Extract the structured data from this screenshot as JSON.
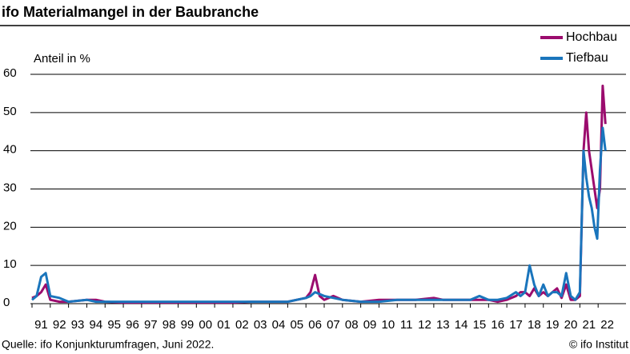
{
  "chart_data": {
    "type": "line",
    "title": "ifo Materialmangel in der Baubranche",
    "y_label": "Anteil in %",
    "source": "Quelle: ifo Konjunkturumfragen, Juni 2022.",
    "copyright": "© ifo Institut",
    "x": [
      1991.0,
      1991.25,
      1991.5,
      1991.75,
      1992.0,
      1992.5,
      1993,
      1994,
      1994.5,
      1995,
      1996,
      1997,
      1998,
      1999,
      2000,
      2001,
      2002,
      2003,
      2004,
      2005,
      2005.5,
      2006,
      2006.25,
      2006.5,
      2006.75,
      2007,
      2007.5,
      2008,
      2009,
      2010,
      2011,
      2012,
      2013,
      2013.5,
      2014,
      2015,
      2015.5,
      2016,
      2016.5,
      2017,
      2017.5,
      2017.75,
      2018,
      2018.25,
      2018.5,
      2018.75,
      2019,
      2019.25,
      2019.5,
      2019.75,
      2020,
      2020.25,
      2020.5,
      2020.75,
      2021,
      2021.2,
      2021.35,
      2021.5,
      2021.65,
      2021.8,
      2021.95,
      2022.1,
      2022.25,
      2022.4
    ],
    "series": [
      {
        "name": "Hochbau",
        "color": "#9b0c6e",
        "values": [
          1.5,
          2,
          3,
          5,
          1,
          0.5,
          0.5,
          1,
          1,
          0.5,
          0.3,
          0.3,
          0.3,
          0.3,
          0.3,
          0.3,
          0.3,
          0.5,
          0.5,
          0.5,
          1,
          1.5,
          3,
          7.5,
          2,
          1,
          2,
          1,
          0.5,
          1,
          1,
          1,
          1.5,
          1,
          1,
          1,
          1,
          1,
          0.5,
          1,
          2,
          3,
          3,
          2,
          4,
          2,
          3,
          2,
          3,
          4,
          1.5,
          5,
          1,
          1,
          2,
          40,
          50,
          40,
          35,
          30,
          25,
          30,
          57,
          47
        ]
      },
      {
        "name": "Tiefbau",
        "color": "#1a75bc",
        "values": [
          1,
          2,
          7,
          8,
          2,
          1.5,
          0.5,
          1,
          0.5,
          0.5,
          0.5,
          0.5,
          0.5,
          0.5,
          0.5,
          0.5,
          0.5,
          0.5,
          0.5,
          0.5,
          1,
          1.5,
          2,
          3,
          2.5,
          2,
          1.5,
          1,
          0.5,
          0.5,
          1,
          1,
          1,
          1,
          1,
          1,
          2,
          1,
          1,
          1.5,
          3,
          2,
          3,
          10,
          5,
          2,
          5,
          2,
          3,
          3,
          2,
          8,
          2,
          1,
          3,
          40,
          33,
          28,
          25,
          20,
          17,
          35,
          46,
          40
        ]
      }
    ],
    "xlim": [
      1991,
      2023
    ],
    "xticks": [
      {
        "value": 1991,
        "label": "91"
      },
      {
        "value": 1992,
        "label": "92"
      },
      {
        "value": 1993,
        "label": "93"
      },
      {
        "value": 1994,
        "label": "94"
      },
      {
        "value": 1995,
        "label": "95"
      },
      {
        "value": 1996,
        "label": "96"
      },
      {
        "value": 1997,
        "label": "97"
      },
      {
        "value": 1998,
        "label": "98"
      },
      {
        "value": 1999,
        "label": "99"
      },
      {
        "value": 2000,
        "label": "00"
      },
      {
        "value": 2001,
        "label": "01"
      },
      {
        "value": 2002,
        "label": "02"
      },
      {
        "value": 2003,
        "label": "03"
      },
      {
        "value": 2004,
        "label": "04"
      },
      {
        "value": 2005,
        "label": "05"
      },
      {
        "value": 2006,
        "label": "06"
      },
      {
        "value": 2007,
        "label": "07"
      },
      {
        "value": 2008,
        "label": "08"
      },
      {
        "value": 2009,
        "label": "09"
      },
      {
        "value": 2010,
        "label": "10"
      },
      {
        "value": 2011,
        "label": "11"
      },
      {
        "value": 2012,
        "label": "12"
      },
      {
        "value": 2013,
        "label": "13"
      },
      {
        "value": 2014,
        "label": "14"
      },
      {
        "value": 2015,
        "label": "15"
      },
      {
        "value": 2016,
        "label": "16"
      },
      {
        "value": 2017,
        "label": "17"
      },
      {
        "value": 2018,
        "label": "18"
      },
      {
        "value": 2019,
        "label": "19"
      },
      {
        "value": 2020,
        "label": "20"
      },
      {
        "value": 2021,
        "label": "21"
      },
      {
        "value": 2022,
        "label": "22"
      }
    ],
    "ylim": [
      0,
      60
    ],
    "yticks": [
      0,
      10,
      20,
      30,
      40,
      50,
      60
    ],
    "grid": true,
    "legend": "top-right"
  }
}
